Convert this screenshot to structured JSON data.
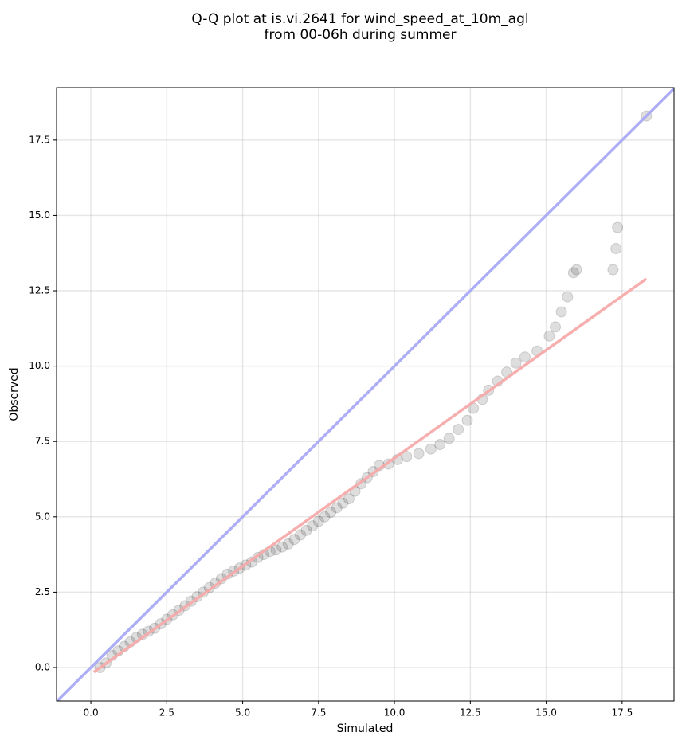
{
  "chart_data": {
    "type": "scatter",
    "title": [
      "Q-Q plot at is.vi.2641 for wind_speed_at_10m_agl",
      "from 00-06h during summer"
    ],
    "x_label": "Simulated",
    "y_label": "Observed",
    "xlim": [
      -1.13,
      19.21
    ],
    "ylim": [
      -1.11,
      19.24
    ],
    "xticks": [
      {
        "value": 0,
        "label": "0.0"
      },
      2.5,
      {
        "value": 5,
        "label": "5.0"
      },
      7.5,
      {
        "value": 10,
        "label": "10.0"
      },
      12.5,
      {
        "value": 15,
        "label": "15.0"
      },
      17.5
    ],
    "yticks": [
      {
        "value": 0,
        "label": "0.0"
      },
      2.5,
      {
        "value": 5,
        "label": "5.0"
      },
      7.5,
      {
        "value": 10,
        "label": "10.0"
      },
      12.5,
      {
        "value": 15,
        "label": "15.0"
      },
      17.5
    ],
    "grid": true,
    "color": "#000000",
    "x": [
      0.3,
      0.5,
      0.7,
      0.9,
      1.1,
      1.3,
      1.5,
      1.7,
      1.9,
      2.1,
      2.3,
      2.5,
      2.7,
      2.9,
      3.1,
      3.3,
      3.5,
      3.7,
      3.9,
      4.1,
      4.3,
      4.5,
      4.7,
      4.9,
      5.1,
      5.3,
      5.5,
      5.7,
      5.9,
      6.1,
      6.3,
      6.5,
      6.7,
      6.9,
      7.1,
      7.3,
      7.5,
      7.7,
      7.9,
      8.1,
      8.3,
      8.5,
      8.7,
      8.9,
      9.1,
      9.3,
      9.5,
      9.8,
      10.1,
      10.4,
      10.8,
      11.2,
      11.5,
      11.8,
      12.1,
      12.4,
      12.6,
      12.9,
      13.1,
      13.4,
      13.7,
      14.0,
      14.3,
      14.7,
      15.1,
      15.3,
      15.5,
      15.7,
      15.9,
      16.0,
      17.2,
      17.3,
      17.35,
      18.3
    ],
    "y": [
      0.0,
      0.15,
      0.4,
      0.55,
      0.7,
      0.85,
      1.0,
      1.1,
      1.2,
      1.3,
      1.45,
      1.6,
      1.75,
      1.9,
      2.05,
      2.2,
      2.35,
      2.5,
      2.65,
      2.8,
      2.95,
      3.1,
      3.2,
      3.3,
      3.4,
      3.5,
      3.65,
      3.75,
      3.85,
      3.9,
      4.0,
      4.1,
      4.25,
      4.4,
      4.55,
      4.7,
      4.85,
      5.0,
      5.15,
      5.3,
      5.45,
      5.6,
      5.85,
      6.1,
      6.3,
      6.5,
      6.7,
      6.75,
      6.9,
      7.0,
      7.1,
      7.25,
      7.4,
      7.6,
      7.9,
      8.2,
      8.6,
      8.9,
      9.2,
      9.5,
      9.8,
      10.1,
      10.3,
      10.5,
      11.0,
      11.3,
      11.8,
      12.3,
      13.1,
      13.2,
      13.2,
      13.9,
      14.6,
      18.3
    ],
    "lines": [
      {
        "color": "#aaaaf5",
        "x": [
          -1.13,
          19.21
        ],
        "y": [
          -1.13,
          19.21
        ]
      },
      {
        "color": "#f5aaaa",
        "x": [
          0.1,
          18.3
        ],
        "y": [
          -0.15,
          12.9
        ]
      }
    ]
  }
}
